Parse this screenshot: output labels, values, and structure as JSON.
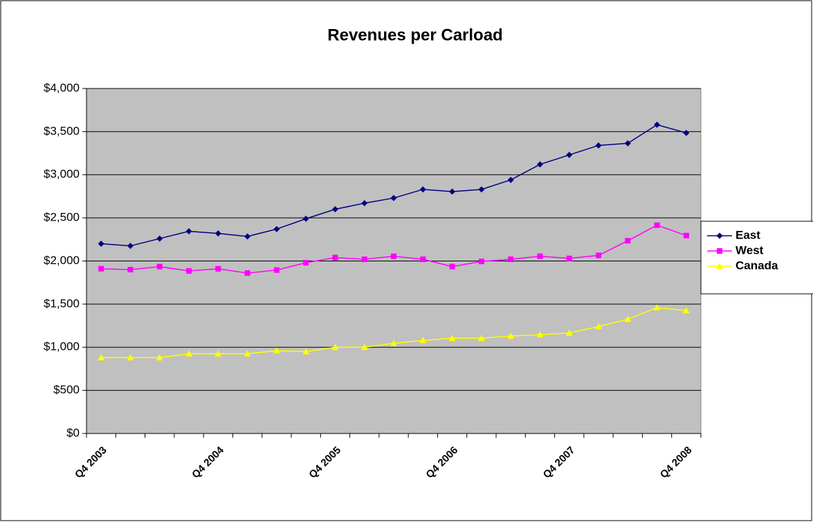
{
  "chart_data": {
    "type": "line",
    "title": "Revenues per Carload",
    "categories": [
      "Q4 2003",
      null,
      null,
      null,
      "Q4 2004",
      null,
      null,
      null,
      "Q4 2005",
      null,
      null,
      null,
      "Q4 2006",
      null,
      null,
      null,
      "Q4 2007",
      null,
      null,
      null,
      "Q4 2008"
    ],
    "series": [
      {
        "name": "East",
        "color": "#000080",
        "marker": "diamond",
        "values": [
          2200,
          2175,
          2260,
          2345,
          2320,
          2285,
          2370,
          2490,
          2600,
          2670,
          2730,
          2830,
          2805,
          2830,
          2940,
          3120,
          3230,
          3340,
          3365,
          3580,
          3485
        ]
      },
      {
        "name": "West",
        "color": "#ff00ff",
        "marker": "square",
        "values": [
          1910,
          1900,
          1935,
          1885,
          1910,
          1860,
          1895,
          1980,
          2040,
          2020,
          2055,
          2020,
          1935,
          1995,
          2020,
          2055,
          2030,
          2065,
          2235,
          2415,
          2295
        ]
      },
      {
        "name": "Canada",
        "color": "#ffff00",
        "marker": "triangle",
        "values": [
          880,
          880,
          880,
          925,
          925,
          925,
          960,
          950,
          1000,
          1000,
          1045,
          1080,
          1105,
          1105,
          1130,
          1145,
          1165,
          1240,
          1325,
          1460,
          1425
        ]
      }
    ],
    "ylim": [
      0,
      4000
    ],
    "yticks": [
      {
        "value": 0,
        "label": "$0"
      },
      {
        "value": 500,
        "label": "$500"
      },
      {
        "value": 1000,
        "label": "$1,000"
      },
      {
        "value": 1500,
        "label": "$1,500"
      },
      {
        "value": 2000,
        "label": "$2,000"
      },
      {
        "value": 2500,
        "label": "$2,500"
      },
      {
        "value": 3000,
        "label": "$3,000"
      },
      {
        "value": 3500,
        "label": "$3,500"
      },
      {
        "value": 4000,
        "label": "$4,000"
      }
    ],
    "grid": true,
    "legend": "right",
    "plot_background": "#c0c0c0"
  }
}
